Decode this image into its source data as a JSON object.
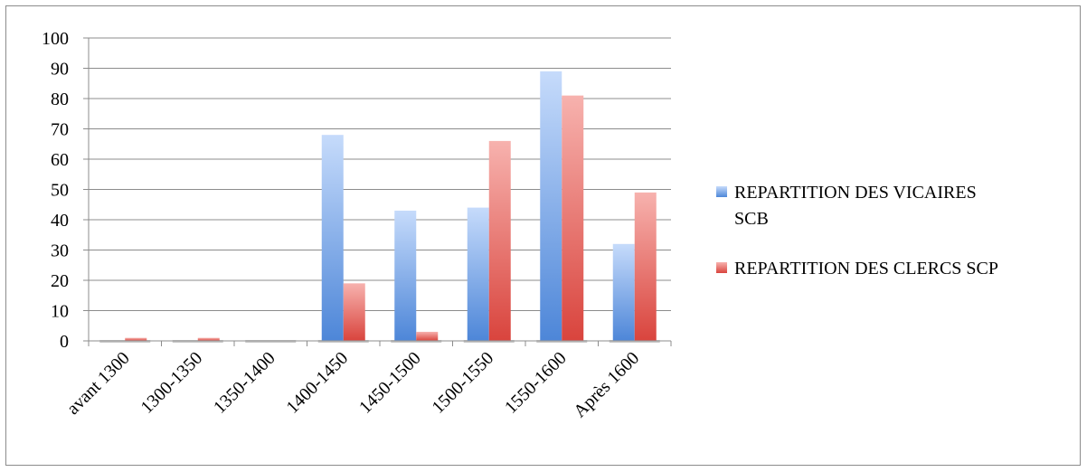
{
  "chart_data": {
    "type": "bar",
    "categories": [
      "avant 1300",
      "1300-1350",
      "1350-1400",
      "1400-1450",
      "1450-1500",
      "1500-1550",
      "1550-1600",
      "Après 1600"
    ],
    "series": [
      {
        "name": "REPARTITION DES VICAIRES SCB",
        "values": [
          0,
          0,
          0,
          68,
          43,
          44,
          89,
          32
        ],
        "color": "#6a9ae0"
      },
      {
        "name": "REPARTITION DES CLERCS SCP",
        "values": [
          1,
          1,
          0,
          19,
          3,
          66,
          81,
          49
        ],
        "color": "#e0504a"
      }
    ],
    "ylim": [
      0,
      100
    ],
    "yticks": [
      0,
      10,
      20,
      30,
      40,
      50,
      60,
      70,
      80,
      90,
      100
    ],
    "grid": true,
    "legend_position": "right",
    "title": "",
    "xlabel": "",
    "ylabel": ""
  },
  "legend": {
    "series_1_line_1": "REPARTITION DES VICAIRES",
    "series_1_line_2": "SCB",
    "series_2_line_1": "REPARTITION DES CLERCS SCP"
  }
}
